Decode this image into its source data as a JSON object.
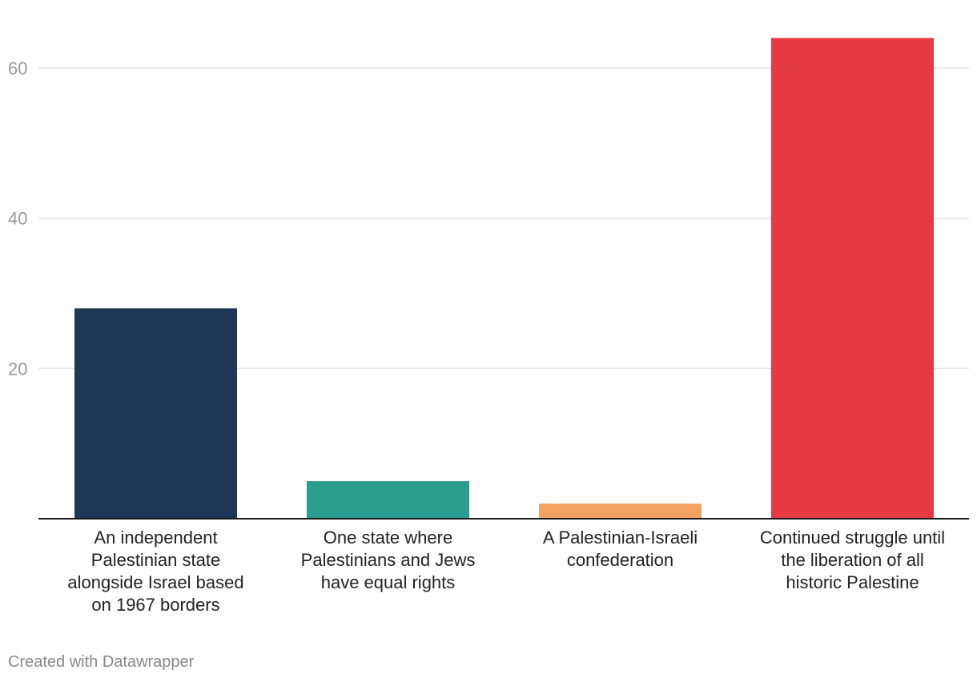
{
  "chart_data": {
    "type": "bar",
    "categories": [
      [
        "An independent",
        "Palestinian state",
        "alongside Israel based",
        "on 1967 borders"
      ],
      [
        "One state where",
        "Palestinians and Jews",
        "have equal rights"
      ],
      [
        "A Palestinian-Israeli",
        "confederation"
      ],
      [
        "Continued struggle until",
        "the liberation of all",
        "historic Palestine"
      ]
    ],
    "values": [
      28,
      5,
      2,
      64
    ],
    "colors": [
      "#1f3757",
      "#2a9d8f",
      "#f4a261",
      "#e63946"
    ],
    "yticks": [
      20,
      40,
      60
    ],
    "ylim": [
      0,
      64
    ],
    "grid": true,
    "legend": "none",
    "title": "",
    "xlabel": "",
    "ylabel": ""
  },
  "footer": {
    "credit": "Created with Datawrapper"
  }
}
